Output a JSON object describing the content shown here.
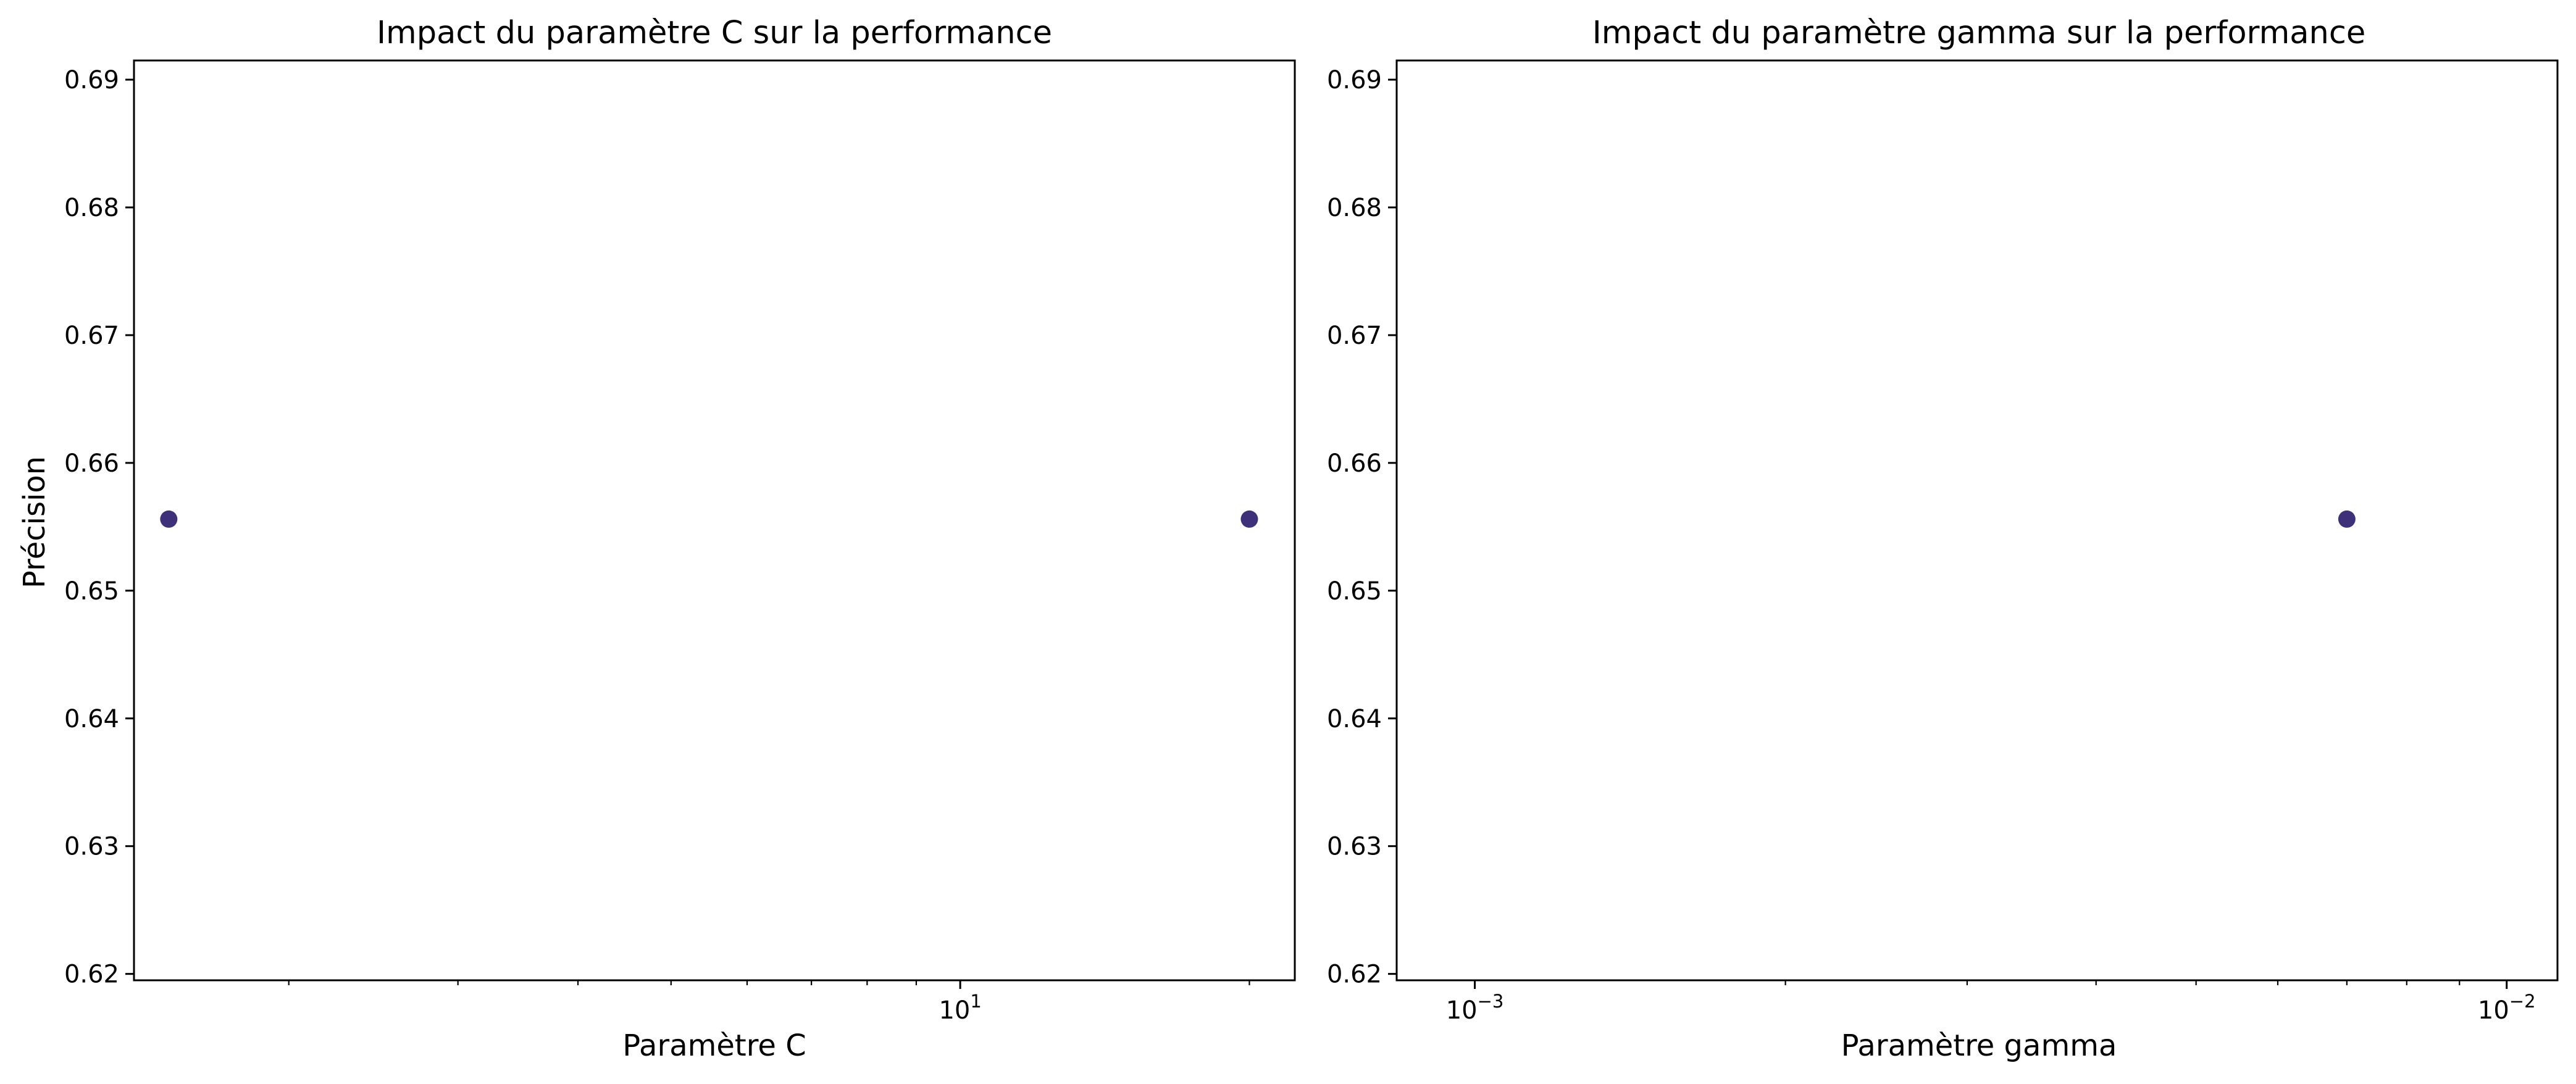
{
  "figure": {
    "marker_color": "#3f307a",
    "background": "#ffffff"
  },
  "chart_data": [
    {
      "type": "scatter",
      "title": "Impact du paramètre C sur la performance",
      "xlabel": "Paramètre C",
      "ylabel": "Précision",
      "xscale": "log",
      "xlim": [
        1.38,
        22.3
      ],
      "ylim": [
        0.6195,
        0.6915
      ],
      "x_major_ticks": [
        {
          "value": 10,
          "base": "10",
          "exp": "1"
        }
      ],
      "x_minor_ticks": [
        2,
        3,
        4,
        5,
        6,
        7,
        8,
        9,
        20
      ],
      "y_ticks": [
        0.62,
        0.63,
        0.64,
        0.65,
        0.66,
        0.67,
        0.68,
        0.69
      ],
      "y_tick_labels": [
        "0.62",
        "0.63",
        "0.64",
        "0.65",
        "0.66",
        "0.67",
        "0.68",
        "0.69"
      ],
      "grid": false,
      "points": [
        {
          "x": 1.5,
          "y": 0.6556
        },
        {
          "x": 20,
          "y": 0.6556
        }
      ]
    },
    {
      "type": "scatter",
      "title": "Impact du paramètre gamma sur la performance",
      "xlabel": "Paramètre gamma",
      "ylabel": "",
      "xscale": "log",
      "xlim": [
        0.00084,
        0.0112
      ],
      "ylim": [
        0.6195,
        0.6915
      ],
      "x_major_ticks": [
        {
          "value": 0.001,
          "base": "10",
          "exp": "−3"
        },
        {
          "value": 0.01,
          "base": "10",
          "exp": "−2"
        }
      ],
      "x_minor_ticks": [
        0.002,
        0.003,
        0.004,
        0.005,
        0.006,
        0.007,
        0.008,
        0.009
      ],
      "y_ticks": [
        0.62,
        0.63,
        0.64,
        0.65,
        0.66,
        0.67,
        0.68,
        0.69
      ],
      "y_tick_labels": [
        "0.62",
        "0.63",
        "0.64",
        "0.65",
        "0.66",
        "0.67",
        "0.68",
        "0.69"
      ],
      "grid": false,
      "points": [
        {
          "x": 0.007,
          "y": 0.6556
        }
      ]
    }
  ]
}
